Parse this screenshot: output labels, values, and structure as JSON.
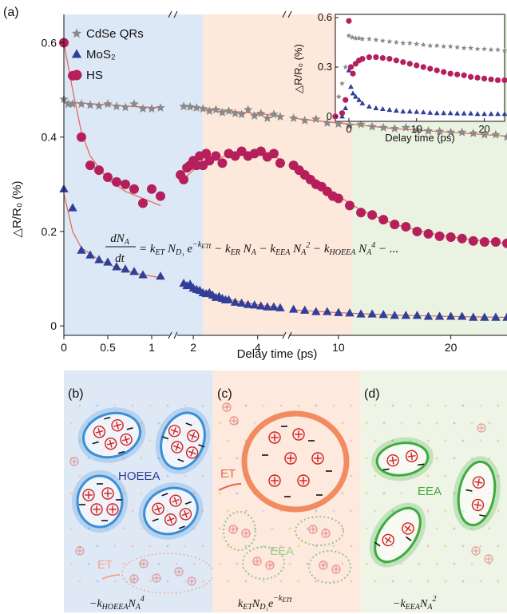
{
  "panel_labels": {
    "a": "(a)",
    "b": "(b)",
    "c": "(c)",
    "d": "(d)"
  },
  "chart_data": [
    {
      "type": "scatter",
      "title": "",
      "xlabel": "Delay time (ps)",
      "ylabel": "△R/R₀ (%)",
      "x_axis": "segmented (broken) axis: 0–1.2 ps, 1.5–4.8 ps, 5.6–25 ps",
      "xticks": [
        "0",
        "0.5",
        "1",
        "2",
        "4",
        "10",
        "20"
      ],
      "yticks": [
        "0",
        "0.2",
        "0.4",
        "0.6"
      ],
      "ylim": [
        -0.02,
        0.66
      ],
      "legend_position": "top-left",
      "regions": [
        {
          "from_ps": 0,
          "to_ps": 2.3,
          "color": "#dde8f6"
        },
        {
          "from_ps": 2.3,
          "to_ps": 11.2,
          "color": "#fde8dc"
        },
        {
          "from_ps": 11.2,
          "to_ps": 25,
          "color": "#eaf3e2"
        }
      ],
      "fit_color": "#e8634b",
      "series": [
        {
          "name": "CdSe QRs",
          "marker": "star",
          "color": "#8a8a8a",
          "x": [
            0,
            0.05,
            0.1,
            0.2,
            0.3,
            0.4,
            0.5,
            0.6,
            0.7,
            0.8,
            0.9,
            1.0,
            1.1,
            1.7,
            1.9,
            2.1,
            2.3,
            2.5,
            2.7,
            2.9,
            3.1,
            3.3,
            3.5,
            3.7,
            3.9,
            4.1,
            4.3,
            4.5,
            4.7,
            6,
            7,
            8,
            9,
            10,
            11,
            12,
            13,
            14,
            15,
            16,
            17,
            18,
            19,
            20,
            21,
            22,
            23,
            24,
            25
          ],
          "values": [
            0.48,
            0.47,
            0.47,
            0.47,
            0.468,
            0.466,
            0.47,
            0.465,
            0.463,
            0.47,
            0.46,
            0.46,
            0.462,
            0.465,
            0.464,
            0.462,
            0.46,
            0.455,
            0.458,
            0.452,
            0.455,
            0.45,
            0.448,
            0.458,
            0.445,
            0.45,
            0.44,
            0.448,
            0.443,
            0.44,
            0.435,
            0.438,
            0.43,
            0.428,
            0.425,
            0.427,
            0.422,
            0.42,
            0.418,
            0.42,
            0.415,
            0.413,
            0.412,
            0.41,
            0.41,
            0.408,
            0.405,
            0.405,
            0.4
          ]
        },
        {
          "name": "MoS₂",
          "marker": "triangle",
          "color": "#2f3f9a",
          "x": [
            0,
            0.1,
            0.2,
            0.3,
            0.4,
            0.5,
            0.6,
            0.7,
            0.8,
            0.9,
            1.1,
            1.7,
            1.8,
            1.9,
            2.0,
            2.1,
            2.2,
            2.3,
            2.4,
            2.5,
            2.6,
            2.7,
            2.8,
            2.9,
            3.0,
            3.1,
            3.3,
            3.5,
            3.7,
            3.9,
            4.1,
            4.3,
            4.5,
            4.7,
            6,
            7,
            8,
            9,
            10,
            11,
            12,
            13,
            14,
            15,
            16,
            17,
            18,
            19,
            20,
            21,
            22,
            23,
            24,
            25
          ],
          "values": [
            0.29,
            0.25,
            0.16,
            0.15,
            0.14,
            0.135,
            0.125,
            0.12,
            0.115,
            0.108,
            0.105,
            0.09,
            0.085,
            0.088,
            0.08,
            0.077,
            0.075,
            0.07,
            0.068,
            0.07,
            0.065,
            0.06,
            0.062,
            0.058,
            0.055,
            0.055,
            0.05,
            0.048,
            0.045,
            0.044,
            0.042,
            0.04,
            0.04,
            0.038,
            0.035,
            0.033,
            0.03,
            0.03,
            0.028,
            0.027,
            0.025,
            0.025,
            0.024,
            0.022,
            0.022,
            0.022,
            0.02,
            0.02,
            0.02,
            0.02,
            0.018,
            0.018,
            0.018,
            0.018
          ]
        },
        {
          "name": "HS",
          "marker": "circle",
          "color": "#b51f5c",
          "x": [
            0,
            0.1,
            0.2,
            0.3,
            0.4,
            0.5,
            0.6,
            0.7,
            0.8,
            0.9,
            1.0,
            1.1,
            1.6,
            1.7,
            1.8,
            1.9,
            2.0,
            2.1,
            2.2,
            2.3,
            2.4,
            2.5,
            2.7,
            2.9,
            3.1,
            3.3,
            3.5,
            3.7,
            3.9,
            4.1,
            4.3,
            4.5,
            4.7,
            6,
            6.5,
            7,
            7.5,
            8,
            8.5,
            9,
            9.5,
            10,
            11,
            12,
            13,
            14,
            15,
            16,
            17,
            18,
            19,
            20,
            21,
            22,
            23,
            24,
            25
          ],
          "values": [
            0.6,
            0.53,
            0.4,
            0.34,
            0.33,
            0.315,
            0.305,
            0.3,
            0.29,
            0.26,
            0.29,
            0.275,
            0.32,
            0.31,
            0.335,
            0.34,
            0.35,
            0.34,
            0.36,
            0.34,
            0.365,
            0.35,
            0.36,
            0.345,
            0.365,
            0.36,
            0.37,
            0.36,
            0.365,
            0.37,
            0.358,
            0.365,
            0.345,
            0.34,
            0.33,
            0.32,
            0.31,
            0.3,
            0.295,
            0.285,
            0.275,
            0.27,
            0.255,
            0.24,
            0.235,
            0.225,
            0.215,
            0.21,
            0.2,
            0.195,
            0.19,
            0.188,
            0.185,
            0.18,
            0.178,
            0.178,
            0.175
          ]
        }
      ],
      "fits": [
        {
          "x": [
            0,
            0.1,
            0.2,
            0.3,
            0.5,
            0.7,
            0.9,
            1.1
          ],
          "values": [
            0.6,
            0.5,
            0.41,
            0.36,
            0.31,
            0.285,
            0.27,
            0.255
          ]
        },
        {
          "x": [
            1.6,
            2.0,
            2.5,
            3.0,
            3.5,
            4.0,
            4.5,
            4.7
          ],
          "values": [
            0.305,
            0.33,
            0.35,
            0.36,
            0.365,
            0.367,
            0.36,
            0.352
          ]
        },
        {
          "x": [
            6,
            8,
            10,
            12,
            15,
            18,
            21,
            25
          ],
          "values": [
            0.345,
            0.31,
            0.275,
            0.245,
            0.215,
            0.197,
            0.185,
            0.175
          ]
        },
        {
          "x": [
            0,
            0.1,
            0.2,
            0.4,
            0.6,
            0.8,
            1.1
          ],
          "values": [
            0.28,
            0.2,
            0.165,
            0.14,
            0.123,
            0.112,
            0.102
          ]
        },
        {
          "x": [
            1.7,
            2.2,
            2.7,
            3.2,
            3.7,
            4.2,
            4.7
          ],
          "values": [
            0.088,
            0.075,
            0.065,
            0.055,
            0.048,
            0.043,
            0.039
          ]
        },
        {
          "x": [
            6,
            10,
            15,
            20,
            25
          ],
          "values": [
            0.034,
            0.028,
            0.023,
            0.02,
            0.018
          ]
        },
        {
          "x": [
            0,
            0.6,
            1.1
          ],
          "values": [
            0.475,
            0.467,
            0.462
          ]
        },
        {
          "x": [
            1.6,
            3.2,
            4.7
          ],
          "values": [
            0.466,
            0.455,
            0.445
          ]
        },
        {
          "x": [
            6,
            10,
            15,
            20,
            25
          ],
          "values": [
            0.44,
            0.43,
            0.418,
            0.41,
            0.402
          ]
        }
      ],
      "equation": "dN_A/dt = k_ET N_D1 e^(-k_ET t) - k_ER N_A - k_EEA N_A^2 - k_HOEEA N_A^4 - ..."
    },
    {
      "type": "scatter",
      "title": "",
      "xlabel": "Delay time (ps)",
      "ylabel": "△R/R₀ (%)",
      "xlim": [
        -2,
        23
      ],
      "ylim": [
        -0.03,
        0.62
      ],
      "xticks": [
        "0",
        "10",
        "20"
      ],
      "yticks": [
        "0",
        "0.3",
        "0.6"
      ],
      "series": [
        {
          "name": "CdSe QRs",
          "marker": "star",
          "color": "#8a8a8a",
          "x": [
            -2,
            -1.5,
            -1,
            -0.5,
            0,
            0.5,
            1,
            1.5,
            2,
            3,
            4,
            5,
            6,
            7,
            8,
            9,
            10,
            11,
            12,
            13,
            14,
            15,
            16,
            17,
            18,
            19,
            20,
            21,
            22,
            23
          ],
          "values": [
            0.0,
            0.12,
            0.2,
            0.3,
            0.49,
            0.48,
            0.475,
            0.475,
            0.47,
            0.47,
            0.465,
            0.46,
            0.455,
            0.45,
            0.445,
            0.445,
            0.44,
            0.435,
            0.43,
            0.43,
            0.425,
            0.425,
            0.42,
            0.415,
            0.415,
            0.41,
            0.41,
            0.405,
            0.405,
            0.4
          ]
        },
        {
          "name": "MoS₂",
          "marker": "triangle",
          "color": "#2f3f9a",
          "x": [
            -2,
            -1,
            -0.5,
            0,
            0.3,
            0.6,
            1,
            1.5,
            2,
            3,
            4,
            5,
            6,
            7,
            8,
            9,
            10,
            11,
            12,
            13,
            14,
            15,
            16,
            17,
            18,
            19,
            20,
            21,
            22,
            23
          ],
          "values": [
            0.0,
            0.0,
            0.05,
            0.28,
            0.18,
            0.14,
            0.12,
            0.1,
            0.08,
            0.06,
            0.05,
            0.045,
            0.04,
            0.035,
            0.03,
            0.03,
            0.028,
            0.025,
            0.022,
            0.02,
            0.02,
            0.02,
            0.018,
            0.018,
            0.018,
            0.015,
            0.015,
            0.015,
            0.015,
            0.015
          ]
        },
        {
          "name": "HS",
          "marker": "circle",
          "color": "#b51f5c",
          "x": [
            -2,
            -1,
            -0.5,
            0,
            0.3,
            0.6,
            1,
            1.5,
            2,
            3,
            4,
            5,
            6,
            7,
            8,
            9,
            10,
            11,
            12,
            13,
            14,
            15,
            16,
            17,
            18,
            19,
            20,
            21,
            22,
            23
          ],
          "values": [
            0.0,
            0.02,
            0.1,
            0.58,
            0.3,
            0.26,
            0.32,
            0.34,
            0.35,
            0.36,
            0.36,
            0.355,
            0.35,
            0.34,
            0.33,
            0.32,
            0.31,
            0.3,
            0.29,
            0.28,
            0.27,
            0.26,
            0.255,
            0.25,
            0.24,
            0.235,
            0.23,
            0.225,
            0.22,
            0.22
          ]
        }
      ]
    }
  ],
  "schematic": {
    "b": {
      "process": "HOEEA",
      "transfer": "ET",
      "rate_term": "−k_HOEEA N_A^4"
    },
    "c": {
      "transfer": "ET",
      "process": "EEA",
      "rate_term": "k_ET N_D1 e^(−k_ET t)"
    },
    "d": {
      "process": "EEA",
      "rate_term": "−k_EEA N_A^2"
    },
    "colors": {
      "hoeea": "#3a8fd6",
      "et": "#f07a4a",
      "eea": "#3faa3f",
      "charge": "#d21f1f"
    }
  }
}
